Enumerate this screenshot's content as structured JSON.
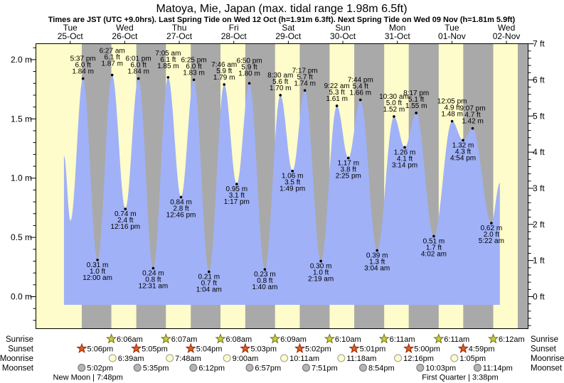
{
  "title": "Matoya, Mie, Japan (max. tidal range 1.98m 6.5ft)",
  "subtitle": "Times are JST (UTC +9.0hrs). Last Spring Tide on Wed 12 Oct (h=1.91m 6.3ft). Next Spring Tide on Wed 09 Nov (h=1.81m 5.9ft)",
  "days": [
    {
      "name": "Tue",
      "date": "25-Oct"
    },
    {
      "name": "Wed",
      "date": "26-Oct"
    },
    {
      "name": "Thu",
      "date": "27-Oct"
    },
    {
      "name": "Fri",
      "date": "28-Oct"
    },
    {
      "name": "Sat",
      "date": "29-Oct"
    },
    {
      "name": "Sun",
      "date": "30-Oct"
    },
    {
      "name": "Mon",
      "date": "31-Oct"
    },
    {
      "name": "Tue",
      "date": "01-Nov"
    },
    {
      "name": "Wed",
      "date": "02-Nov"
    }
  ],
  "axes": {
    "left": [
      {
        "v": 0.0,
        "label": "0.0 m"
      },
      {
        "v": 0.5,
        "label": "0.5 m"
      },
      {
        "v": 1.0,
        "label": "1.0 m"
      },
      {
        "v": 1.5,
        "label": "1.5 m"
      },
      {
        "v": 2.0,
        "label": "2.0 m"
      }
    ],
    "right": [
      {
        "ft": 0,
        "label": "0 ft"
      },
      {
        "ft": 1,
        "label": "1 ft"
      },
      {
        "ft": 2,
        "label": "2 ft"
      },
      {
        "ft": 3,
        "label": "3 ft"
      },
      {
        "ft": 4,
        "label": "4 ft"
      },
      {
        "ft": 5,
        "label": "5 ft"
      },
      {
        "ft": 6,
        "label": "6 ft"
      },
      {
        "ft": 7,
        "label": "7 ft"
      }
    ]
  },
  "chart_data": {
    "type": "area",
    "title": "Tide height curve, Matoya, Mie, Japan, Tue 25-Oct to Wed 02-Nov",
    "ylabel_left": "meters",
    "ylabel_right": "feet",
    "ylim_m": [
      -0.27,
      2.13
    ],
    "curve_start": {
      "day": 0,
      "hour": 9.25,
      "height_m": 1.19
    },
    "curve_end": {
      "day": 8,
      "hour": 9.1,
      "height_m": 0.96
    },
    "extremes": [
      {
        "day": 0,
        "hour": 12.1,
        "height_m": 0.64,
        "label": false
      },
      {
        "day": 0,
        "hour": 17.617,
        "type": "H",
        "height_m": 1.84,
        "time": "5:37 pm",
        "ft": "6.0 ft",
        "m": "1.84 m"
      },
      {
        "day": 1,
        "hour": 0.0,
        "type": "L",
        "height_m": 0.31,
        "time": "12:00 am",
        "ft": "1.0 ft",
        "m": "0.31 m"
      },
      {
        "day": 1,
        "hour": 6.45,
        "type": "H",
        "height_m": 1.87,
        "time": "6:27 am",
        "ft": "6.1 ft",
        "m": "1.87 m",
        "bump": 6
      },
      {
        "day": 1,
        "hour": 12.267,
        "type": "L",
        "height_m": 0.74,
        "time": "12:16 pm",
        "ft": "2.4 ft",
        "m": "0.74 m"
      },
      {
        "day": 1,
        "hour": 18.017,
        "type": "H",
        "height_m": 1.84,
        "time": "6:01 pm",
        "ft": "6.0 ft",
        "m": "1.84 m"
      },
      {
        "day": 2,
        "hour": 0.517,
        "type": "L",
        "height_m": 0.24,
        "time": "12:31 am",
        "ft": "0.8 ft",
        "m": "0.24 m"
      },
      {
        "day": 2,
        "hour": 7.083,
        "type": "H",
        "height_m": 1.85,
        "time": "7:05 am",
        "ft": "6.1 ft",
        "m": "1.85 m",
        "bump": 6
      },
      {
        "day": 2,
        "hour": 12.767,
        "type": "L",
        "height_m": 0.84,
        "time": "12:46 pm",
        "ft": "2.8 ft",
        "m": "0.84 m"
      },
      {
        "day": 2,
        "hour": 18.417,
        "type": "H",
        "height_m": 1.83,
        "time": "6:25 pm",
        "ft": "6.0 ft",
        "m": "1.83 m"
      },
      {
        "day": 3,
        "hour": 1.067,
        "type": "L",
        "height_m": 0.21,
        "time": "1:04 am",
        "ft": "0.7 ft",
        "m": "0.21 m"
      },
      {
        "day": 3,
        "hour": 7.767,
        "type": "H",
        "height_m": 1.79,
        "time": "7:46 am",
        "ft": "5.9 ft",
        "m": "1.79 m"
      },
      {
        "day": 3,
        "hour": 13.283,
        "type": "L",
        "height_m": 0.95,
        "time": "1:17 pm",
        "ft": "3.1 ft",
        "m": "0.95 m"
      },
      {
        "day": 3,
        "hour": 18.833,
        "type": "H",
        "height_m": 1.8,
        "time": "6:50 pm",
        "ft": "5.9 ft",
        "m": "1.80 m",
        "bump": 4
      },
      {
        "day": 4,
        "hour": 1.667,
        "type": "L",
        "height_m": 0.23,
        "time": "1:40 am",
        "ft": "0.8 ft",
        "m": "0.23 m"
      },
      {
        "day": 4,
        "hour": 8.5,
        "type": "H",
        "height_m": 1.7,
        "time": "8:30 am",
        "ft": "5.6 ft",
        "m": "1.70 m"
      },
      {
        "day": 4,
        "hour": 13.817,
        "type": "L",
        "height_m": 1.06,
        "time": "1:49 pm",
        "ft": "3.5 ft",
        "m": "1.06 m"
      },
      {
        "day": 4,
        "hour": 19.283,
        "type": "H",
        "height_m": 1.74,
        "time": "7:17 pm",
        "ft": "5.7 ft",
        "m": "1.74 m"
      },
      {
        "day": 5,
        "hour": 2.317,
        "type": "L",
        "height_m": 0.3,
        "time": "2:19 am",
        "ft": "1.0 ft",
        "m": "0.30 m"
      },
      {
        "day": 5,
        "hour": 9.367,
        "type": "H",
        "height_m": 1.61,
        "time": "9:22 am",
        "ft": "5.3 ft",
        "m": "1.61 m"
      },
      {
        "day": 5,
        "hour": 14.417,
        "type": "L",
        "height_m": 1.17,
        "time": "2:25 pm",
        "ft": "3.8 ft",
        "m": "1.17 m"
      },
      {
        "day": 5,
        "hour": 19.733,
        "type": "H",
        "height_m": 1.66,
        "time": "7:44 pm",
        "ft": "5.4 ft",
        "m": "1.66 m"
      },
      {
        "day": 6,
        "hour": 3.067,
        "type": "L",
        "height_m": 0.39,
        "time": "3:04 am",
        "ft": "1.3 ft",
        "m": "0.39 m"
      },
      {
        "day": 6,
        "hour": 10.5,
        "type": "H",
        "height_m": 1.52,
        "time": "10:30 am",
        "ft": "5.0 ft",
        "m": "1.52 m"
      },
      {
        "day": 6,
        "hour": 15.233,
        "type": "L",
        "height_m": 1.26,
        "time": "3:14 pm",
        "ft": "4.1 ft",
        "m": "1.26 m"
      },
      {
        "day": 6,
        "hour": 20.283,
        "type": "H",
        "height_m": 1.55,
        "time": "8:17 pm",
        "ft": "5.1 ft",
        "m": "1.55 m"
      },
      {
        "day": 7,
        "hour": 4.033,
        "type": "L",
        "height_m": 0.51,
        "time": "4:02 am",
        "ft": "1.7 ft",
        "m": "0.51 m"
      },
      {
        "day": 7,
        "hour": 12.083,
        "type": "H",
        "height_m": 1.48,
        "time": "12:05 pm",
        "ft": "4.9 ft",
        "m": "1.48 m"
      },
      {
        "day": 7,
        "hour": 16.9,
        "type": "L",
        "height_m": 1.32,
        "time": "4:54 pm",
        "ft": "4.3 ft",
        "m": "1.32 m"
      },
      {
        "day": 7,
        "hour": 21.117,
        "type": "H",
        "height_m": 1.42,
        "time": "9:07 pm",
        "ft": "4.7 ft",
        "m": "1.42 m"
      },
      {
        "day": 8,
        "hour": 5.367,
        "type": "L",
        "height_m": 0.62,
        "time": "5:22 am",
        "ft": "2.0 ft",
        "m": "0.62 m"
      }
    ],
    "night_bands": [
      {
        "from_day": 0,
        "from_hour": 17.1,
        "to_day": 1,
        "to_hour": 6.1
      },
      {
        "from_day": 1,
        "from_hour": 17.0833,
        "to_day": 2,
        "to_hour": 6.1167
      },
      {
        "from_day": 2,
        "from_hour": 17.0667,
        "to_day": 3,
        "to_hour": 6.1333
      },
      {
        "from_day": 3,
        "from_hour": 17.05,
        "to_day": 4,
        "to_hour": 6.15
      },
      {
        "from_day": 4,
        "from_hour": 17.0333,
        "to_day": 5,
        "to_hour": 6.1667
      },
      {
        "from_day": 5,
        "from_hour": 17.0167,
        "to_day": 6,
        "to_hour": 6.1833
      },
      {
        "from_day": 6,
        "from_hour": 17.0,
        "to_day": 7,
        "to_hour": 6.1833
      },
      {
        "from_day": 7,
        "from_hour": 16.9833,
        "to_day": 8,
        "to_hour": 6.2
      },
      {
        "from_day": 8,
        "from_hour": 16.9833,
        "to_day": 9,
        "to_hour": 0.0
      }
    ]
  },
  "astro": {
    "rows": [
      {
        "id": "sunrise",
        "label": "Sunrise",
        "icon": "sunrise-star",
        "events": [
          {
            "day": 1,
            "time": "6:06am",
            "hour": 6.1
          },
          {
            "day": 2,
            "time": "6:07am",
            "hour": 6.1167
          },
          {
            "day": 3,
            "time": "6:08am",
            "hour": 6.1333
          },
          {
            "day": 4,
            "time": "6:09am",
            "hour": 6.15
          },
          {
            "day": 5,
            "time": "6:10am",
            "hour": 6.1667
          },
          {
            "day": 6,
            "time": "6:11am",
            "hour": 6.1833
          },
          {
            "day": 7,
            "time": "6:11am",
            "hour": 6.1833
          },
          {
            "day": 8,
            "time": "6:12am",
            "hour": 6.2
          }
        ]
      },
      {
        "id": "sunset",
        "label": "Sunset",
        "icon": "sunset-star",
        "events": [
          {
            "day": 0,
            "time": "5:06pm",
            "hour": 17.1
          },
          {
            "day": 1,
            "time": "5:05pm",
            "hour": 17.0833
          },
          {
            "day": 2,
            "time": "5:04pm",
            "hour": 17.0667
          },
          {
            "day": 3,
            "time": "5:03pm",
            "hour": 17.05
          },
          {
            "day": 4,
            "time": "5:02pm",
            "hour": 17.0333
          },
          {
            "day": 5,
            "time": "5:01pm",
            "hour": 17.0167
          },
          {
            "day": 6,
            "time": "5:00pm",
            "hour": 17.0
          },
          {
            "day": 7,
            "time": "4:59pm",
            "hour": 16.9833
          }
        ]
      },
      {
        "id": "moonrise",
        "label": "Moonrise",
        "icon": "moonrise-circle",
        "events": [
          {
            "day": 1,
            "time": "6:39am",
            "hour": 6.65
          },
          {
            "day": 2,
            "time": "7:48am",
            "hour": 7.8
          },
          {
            "day": 3,
            "time": "9:00am",
            "hour": 9.0
          },
          {
            "day": 4,
            "time": "10:11am",
            "hour": 10.1833
          },
          {
            "day": 5,
            "time": "11:18am",
            "hour": 11.3
          },
          {
            "day": 6,
            "time": "12:16pm",
            "hour": 12.2667
          },
          {
            "day": 7,
            "time": "1:05pm",
            "hour": 13.0833
          }
        ]
      },
      {
        "id": "moonset",
        "label": "Moonset",
        "icon": "moonset-circle",
        "events": [
          {
            "day": 0,
            "time": "5:02pm",
            "hour": 17.0333
          },
          {
            "day": 1,
            "time": "5:35pm",
            "hour": 17.5833
          },
          {
            "day": 2,
            "time": "6:12pm",
            "hour": 18.2
          },
          {
            "day": 3,
            "time": "6:57pm",
            "hour": 18.95
          },
          {
            "day": 4,
            "time": "7:51pm",
            "hour": 19.85
          },
          {
            "day": 5,
            "time": "8:54pm",
            "hour": 20.9
          },
          {
            "day": 6,
            "time": "10:03pm",
            "hour": 22.05
          },
          {
            "day": 7,
            "time": "11:14pm",
            "hour": 23.2333
          }
        ]
      }
    ],
    "phases": [
      {
        "label": "New Moon | 7:48pm",
        "day": 0,
        "hour": 19.8
      },
      {
        "label": "First Quarter | 3:38pm",
        "day": 7,
        "hour": 15.6333
      }
    ]
  },
  "colors": {
    "day_band": "#fdfcca",
    "night_band": "#a9a9a9",
    "tide_fill": "#a0b1f7",
    "date_red": "#cc1111",
    "sunrise_star_fill": "#c9cd3a",
    "sunrise_star_stroke": "#70701f",
    "sunset_star_fill": "#dd5b1e",
    "sunset_star_stroke": "#8f2b0a",
    "moonrise_fill": "#fdfcca",
    "moonrise_stroke": "#9a9a9a",
    "moonset_fill": "#b5b5b5",
    "moonset_stroke": "#6e6e6e"
  }
}
